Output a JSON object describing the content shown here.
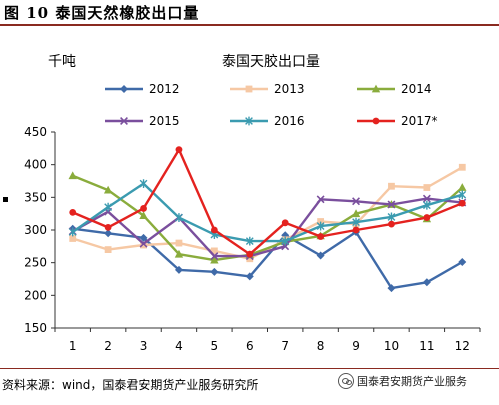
{
  "figure": {
    "title": "图 10 泰国天然橡胶出口量",
    "source": "资料来源：wind，国泰君安期货产业服务研究所",
    "watermark": "国泰君安期货产业服务"
  },
  "chart_data": {
    "type": "line",
    "title": "泰国天胶出口量",
    "ylabel": "千吨",
    "xlabel": "",
    "categories": [
      "1",
      "2",
      "3",
      "4",
      "5",
      "6",
      "7",
      "8",
      "9",
      "10",
      "11",
      "12"
    ],
    "yticks": [
      "450",
      "400",
      "350",
      "300",
      "250",
      "200",
      "150"
    ],
    "ylim": [
      150,
      450
    ],
    "grid": false,
    "legend_position": "top",
    "series": [
      {
        "name": "2012",
        "color": "#3f6aa8",
        "marker": "diamond",
        "values": [
          302,
          295,
          288,
          239,
          236,
          229,
          292,
          261,
          297,
          211,
          220,
          251
        ]
      },
      {
        "name": "2013",
        "color": "#f6c8a4",
        "marker": "square",
        "values": [
          287,
          270,
          277,
          280,
          268,
          256,
          285,
          313,
          309,
          367,
          365,
          396
        ]
      },
      {
        "name": "2014",
        "color": "#8aac3c",
        "marker": "triangle",
        "values": [
          383,
          361,
          322,
          263,
          254,
          262,
          282,
          291,
          325,
          339,
          317,
          365
        ]
      },
      {
        "name": "2015",
        "color": "#7a4f9d",
        "marker": "x",
        "values": [
          298,
          328,
          279,
          319,
          260,
          260,
          275,
          347,
          344,
          339,
          348,
          342
        ]
      },
      {
        "name": "2016",
        "color": "#3b9bb0",
        "marker": "asterisk",
        "values": [
          297,
          335,
          371,
          319,
          293,
          283,
          283,
          306,
          312,
          320,
          338,
          354
        ]
      },
      {
        "name": "2017*",
        "color": "#e4221f",
        "marker": "circle",
        "values": [
          327,
          304,
          333,
          423,
          300,
          263,
          311,
          290,
          300,
          309,
          319,
          341
        ]
      }
    ]
  }
}
